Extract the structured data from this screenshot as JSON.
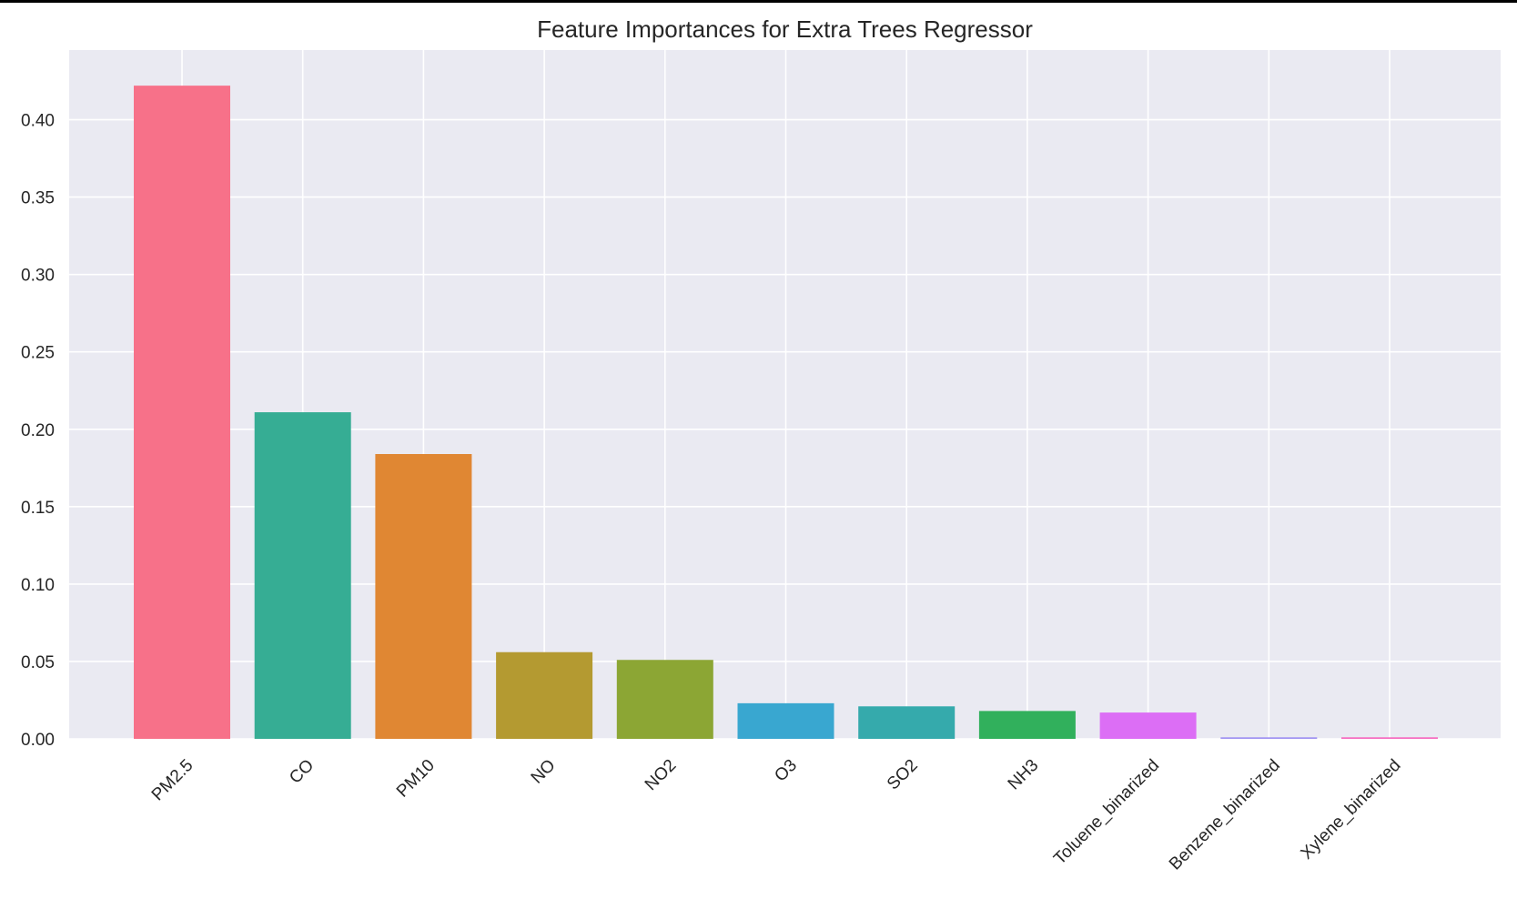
{
  "chart_data": {
    "type": "bar",
    "title": "Feature Importances for Extra Trees Regressor",
    "xlabel": "",
    "ylabel": "",
    "categories": [
      "PM2.5",
      "CO",
      "PM10",
      "NO",
      "NO2",
      "O3",
      "SO2",
      "NH3",
      "Toluene_binarized",
      "Benzene_binarized",
      "Xylene_binarized"
    ],
    "values": [
      0.422,
      0.211,
      0.184,
      0.056,
      0.051,
      0.023,
      0.021,
      0.018,
      0.017,
      0.001,
      0.001
    ],
    "colors": [
      "#f77189",
      "#36ad94",
      "#e08733",
      "#b49a31",
      "#8ca634",
      "#39a7d0",
      "#35aaac",
      "#31b05c",
      "#dc6ef5",
      "#a093f2",
      "#f66bc0"
    ],
    "yticks": [
      "0.00",
      "0.05",
      "0.10",
      "0.15",
      "0.20",
      "0.25",
      "0.30",
      "0.35",
      "0.40"
    ],
    "ylim": [
      0,
      0.445
    ],
    "grid": true,
    "style": "seaborn-darkgrid",
    "background_color": "#eaeaf2",
    "grid_color": "#ffffff"
  }
}
